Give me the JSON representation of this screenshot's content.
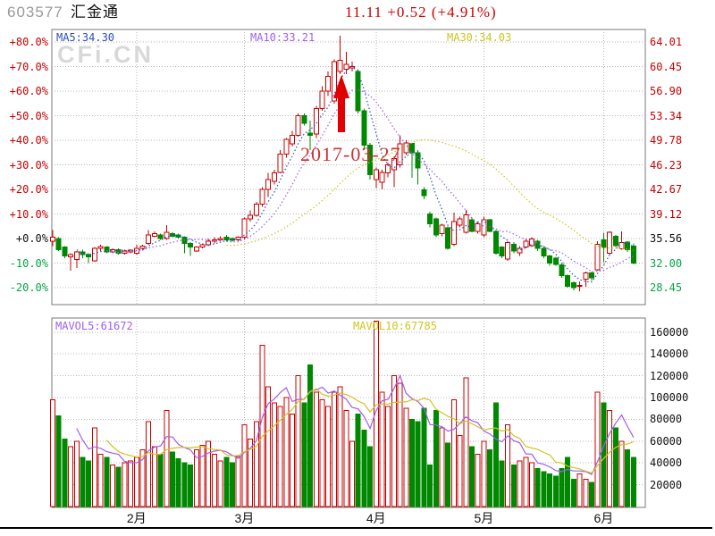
{
  "header": {
    "code": "603577",
    "name": "汇金通",
    "quote": "11.11 +0.52 (+4.91%)"
  },
  "watermark": "CFi.CN",
  "main_chart": {
    "ma_labels": [
      {
        "text": "MA5:34.30"
      },
      {
        "text": "MA10:33.21"
      },
      {
        "text": "MA30:34.03"
      }
    ],
    "left_axis": [
      "+80.0%",
      "+70.0%",
      "+60.0%",
      "+50.0%",
      "+40.0%",
      "+30.0%",
      "+20.0%",
      "+10.0%",
      "+0.0%",
      "-10.0%",
      "-20.0%"
    ],
    "right_axis": [
      "64.01",
      "60.45",
      "56.90",
      "53.34",
      "49.78",
      "46.23",
      "42.67",
      "39.12",
      "35.56",
      "32.00",
      "28.45"
    ]
  },
  "volume_chart": {
    "mavol_labels": [
      {
        "text": "MAVOL5:61672"
      },
      {
        "text": "MAVOL10:67785"
      }
    ],
    "right_axis": [
      "160000",
      "140000",
      "120000",
      "100000",
      "80000",
      "60000",
      "40000",
      "20000"
    ]
  },
  "annotation": {
    "text": "2017-03-27"
  },
  "colors": {
    "up": "#c80000",
    "down": "#008800",
    "ma5": "#2a4fc0",
    "ma10": "#a05ef0",
    "ma30": "#d0c41e",
    "mavol5": "#a05ef0",
    "mavol10": "#d0c41e",
    "axis_positive": "#c80000",
    "axis_negative": "#00a743",
    "axis_zero": "#111111",
    "quote": "#cc0000",
    "code": "#999999",
    "name": "#111111",
    "annotation": "#cc3333",
    "watermark": "#d8d8d8",
    "grid": "#b4b4b4",
    "frame": "#7a7a7a",
    "arrow": "#e00000",
    "volume_axis": "#111111",
    "month": "#111111"
  },
  "chart_data": {
    "type": "candlestick+volume",
    "title": "603577 汇金通",
    "base_price": 35.56,
    "note": "candles are [open,close,low,high] in percent change relative to base price 35.56; 0% = 35.56, +80% = 64.01, -20% = 28.45",
    "percent_gridlines": [
      80,
      70,
      60,
      50,
      40,
      30,
      20,
      10,
      0,
      -10,
      -20
    ],
    "volume_gridlines": [
      160000,
      140000,
      120000,
      100000,
      80000,
      60000,
      40000,
      20000
    ],
    "months": [
      {
        "label": "2月",
        "index": 14
      },
      {
        "label": "3月",
        "index": 32
      },
      {
        "label": "4月",
        "index": 54
      },
      {
        "label": "5月",
        "index": 72
      },
      {
        "label": "6月",
        "index": 92
      }
    ],
    "annotation_date": "2017-03-27",
    "candles": [
      [
        -1,
        0.5,
        -3,
        3.5
      ],
      [
        0,
        -4.5,
        -5,
        0.5
      ],
      [
        -3.5,
        -7,
        -8,
        -3
      ],
      [
        -7.5,
        -6.5,
        -13,
        -6
      ],
      [
        -8.5,
        -5.5,
        -12,
        -5
      ],
      [
        -5.5,
        -6.5,
        -8,
        -4.5
      ],
      [
        -6.5,
        -7.5,
        -10,
        -6
      ],
      [
        -9,
        -4,
        -9.5,
        -3.5
      ],
      [
        -4,
        -3.2,
        -5,
        -2.5
      ],
      [
        -3.5,
        -5.5,
        -6,
        -3
      ],
      [
        -5.5,
        -4.5,
        -6,
        -4
      ],
      [
        -4.5,
        -6,
        -6.5,
        -4
      ],
      [
        -6,
        -5,
        -6.5,
        -4.5
      ],
      [
        -5.5,
        -4.8,
        -6,
        -4.3
      ],
      [
        -6,
        -4,
        -6.5,
        -2.5
      ],
      [
        -4,
        -3,
        -4.5,
        -2.5
      ],
      [
        -2,
        1.5,
        -2.5,
        3.5
      ],
      [
        1,
        2,
        0.5,
        3
      ],
      [
        1.5,
        0,
        -0.5,
        2
      ],
      [
        0,
        2.5,
        -0.5,
        5.5
      ],
      [
        2,
        1,
        0.5,
        2.5
      ],
      [
        1.5,
        0.5,
        0,
        2
      ],
      [
        0.5,
        -2,
        -6,
        1
      ],
      [
        -2,
        -3.5,
        -7,
        -1.5
      ],
      [
        -5,
        -3.5,
        -5.5,
        -3
      ],
      [
        -3.5,
        -2.5,
        -4,
        -2
      ],
      [
        -2.5,
        -1,
        -3,
        0
      ],
      [
        -1,
        -0.5,
        -2,
        0.5
      ],
      [
        -0.5,
        0,
        -1,
        1
      ],
      [
        0.5,
        -0.5,
        -1,
        1.5
      ],
      [
        0,
        -0.8,
        -1.2,
        0.3
      ],
      [
        -0.5,
        0.5,
        -1,
        1
      ],
      [
        0.5,
        8,
        -0.5,
        8.5
      ],
      [
        8,
        9.5,
        7,
        11.5
      ],
      [
        9.5,
        14,
        9,
        15
      ],
      [
        14,
        20,
        13,
        21
      ],
      [
        20,
        24,
        17,
        26.8
      ],
      [
        23.2,
        26.8,
        22,
        28
      ],
      [
        27,
        34.3,
        26.5,
        36
      ],
      [
        34.3,
        40.3,
        33,
        41
      ],
      [
        38.5,
        42,
        37.5,
        43.8
      ],
      [
        42,
        50,
        41.5,
        51
      ],
      [
        50,
        47,
        46,
        51
      ],
      [
        43,
        42,
        36,
        48
      ],
      [
        42.5,
        53,
        41,
        54
      ],
      [
        53,
        60,
        52,
        62
      ],
      [
        60,
        66,
        58,
        68
      ],
      [
        56,
        72,
        55,
        73
      ],
      [
        68,
        72.5,
        67,
        82.5
      ],
      [
        69,
        71,
        67,
        76
      ],
      [
        69.5,
        70,
        68,
        72
      ],
      [
        68,
        52,
        51,
        69
      ],
      [
        52,
        38,
        36,
        53
      ],
      [
        38,
        26,
        24,
        39
      ],
      [
        24,
        28,
        20.6,
        29
      ],
      [
        23,
        27,
        20,
        28
      ],
      [
        26.7,
        30,
        25,
        31
      ],
      [
        28,
        32.6,
        21,
        33.5
      ],
      [
        30,
        38.5,
        29,
        42
      ],
      [
        35,
        39,
        34,
        40
      ],
      [
        38.7,
        35,
        24.7,
        39
      ],
      [
        35,
        28.7,
        22,
        36
      ],
      [
        19.8,
        17.5,
        16,
        21
      ],
      [
        10,
        6,
        4.5,
        11
      ],
      [
        8,
        1.5,
        0.5,
        8.5
      ],
      [
        2,
        5.5,
        1,
        6
      ],
      [
        4.3,
        -4,
        -4.5,
        5
      ],
      [
        -2.3,
        7,
        -3,
        10.5
      ],
      [
        5.5,
        8,
        4.5,
        9
      ],
      [
        2.5,
        9.7,
        2,
        11.7
      ],
      [
        7.7,
        3,
        2.5,
        8.5
      ],
      [
        3,
        6,
        2,
        7
      ],
      [
        1.4,
        7.7,
        0.5,
        9
      ],
      [
        7.7,
        3,
        2.5,
        8
      ],
      [
        3,
        -6,
        -6.5,
        3.5
      ],
      [
        -3.5,
        -7.1,
        -8,
        -3
      ],
      [
        -8.3,
        -1.6,
        -9,
        -1
      ],
      [
        -2.3,
        -5,
        -6,
        -1.5
      ],
      [
        -5.9,
        -4,
        -7,
        -3
      ],
      [
        -3.5,
        -1,
        -4,
        0
      ],
      [
        -2.9,
        -0.1,
        -3.5,
        0.5
      ],
      [
        -1,
        -4,
        -5,
        -0.5
      ],
      [
        -4,
        -7,
        -8,
        -3.5
      ],
      [
        -7,
        -10,
        -11,
        -6.5
      ],
      [
        -8,
        -10.5,
        -11,
        -7.5
      ],
      [
        -10.7,
        -15,
        -16,
        -10
      ],
      [
        -15,
        -19.4,
        -20,
        -14.5
      ],
      [
        -18,
        -20,
        -21,
        -17.5
      ],
      [
        -19.5,
        -19,
        -21.5,
        -17.5
      ],
      [
        -16.5,
        -14,
        -19.7,
        -13.5
      ],
      [
        -14,
        -16,
        -17,
        -13.5
      ],
      [
        -12.8,
        -2.3,
        -13,
        -1.1
      ],
      [
        -0.5,
        -3.6,
        -9.6,
        2.4
      ],
      [
        -6,
        2.6,
        -6.5,
        3
      ],
      [
        0.9,
        -2.9,
        -3.5,
        1.5
      ],
      [
        -4.1,
        -1.7,
        -4.5,
        2.9
      ],
      [
        -1.5,
        -4.5,
        -5.5,
        -1
      ],
      [
        -3,
        -10,
        -10.5,
        -2
      ]
    ],
    "volumes": [
      98000,
      83000,
      62000,
      55000,
      60000,
      45000,
      42000,
      72000,
      48000,
      45000,
      38000,
      36000,
      40000,
      42000,
      45000,
      52000,
      78000,
      55000,
      48000,
      88000,
      50000,
      44000,
      40000,
      38000,
      52000,
      56000,
      60000,
      48000,
      42000,
      45000,
      40000,
      46000,
      75000,
      62000,
      78000,
      148000,
      110000,
      95000,
      92000,
      100000,
      85000,
      120000,
      95000,
      130000,
      105000,
      98000,
      92000,
      105000,
      110000,
      88000,
      60000,
      85000,
      70000,
      55000,
      170000,
      105000,
      92000,
      120000,
      113000,
      90000,
      80000,
      78000,
      90000,
      38000,
      88000,
      72000,
      58000,
      98000,
      65000,
      118000,
      55000,
      48000,
      60000,
      52000,
      95000,
      42000,
      75000,
      38000,
      42000,
      45000,
      40000,
      35000,
      32000,
      30000,
      28000,
      35000,
      45000,
      25000,
      30000,
      25000,
      22000,
      105000,
      95000,
      88000,
      72000,
      60000,
      52000,
      45000
    ]
  }
}
